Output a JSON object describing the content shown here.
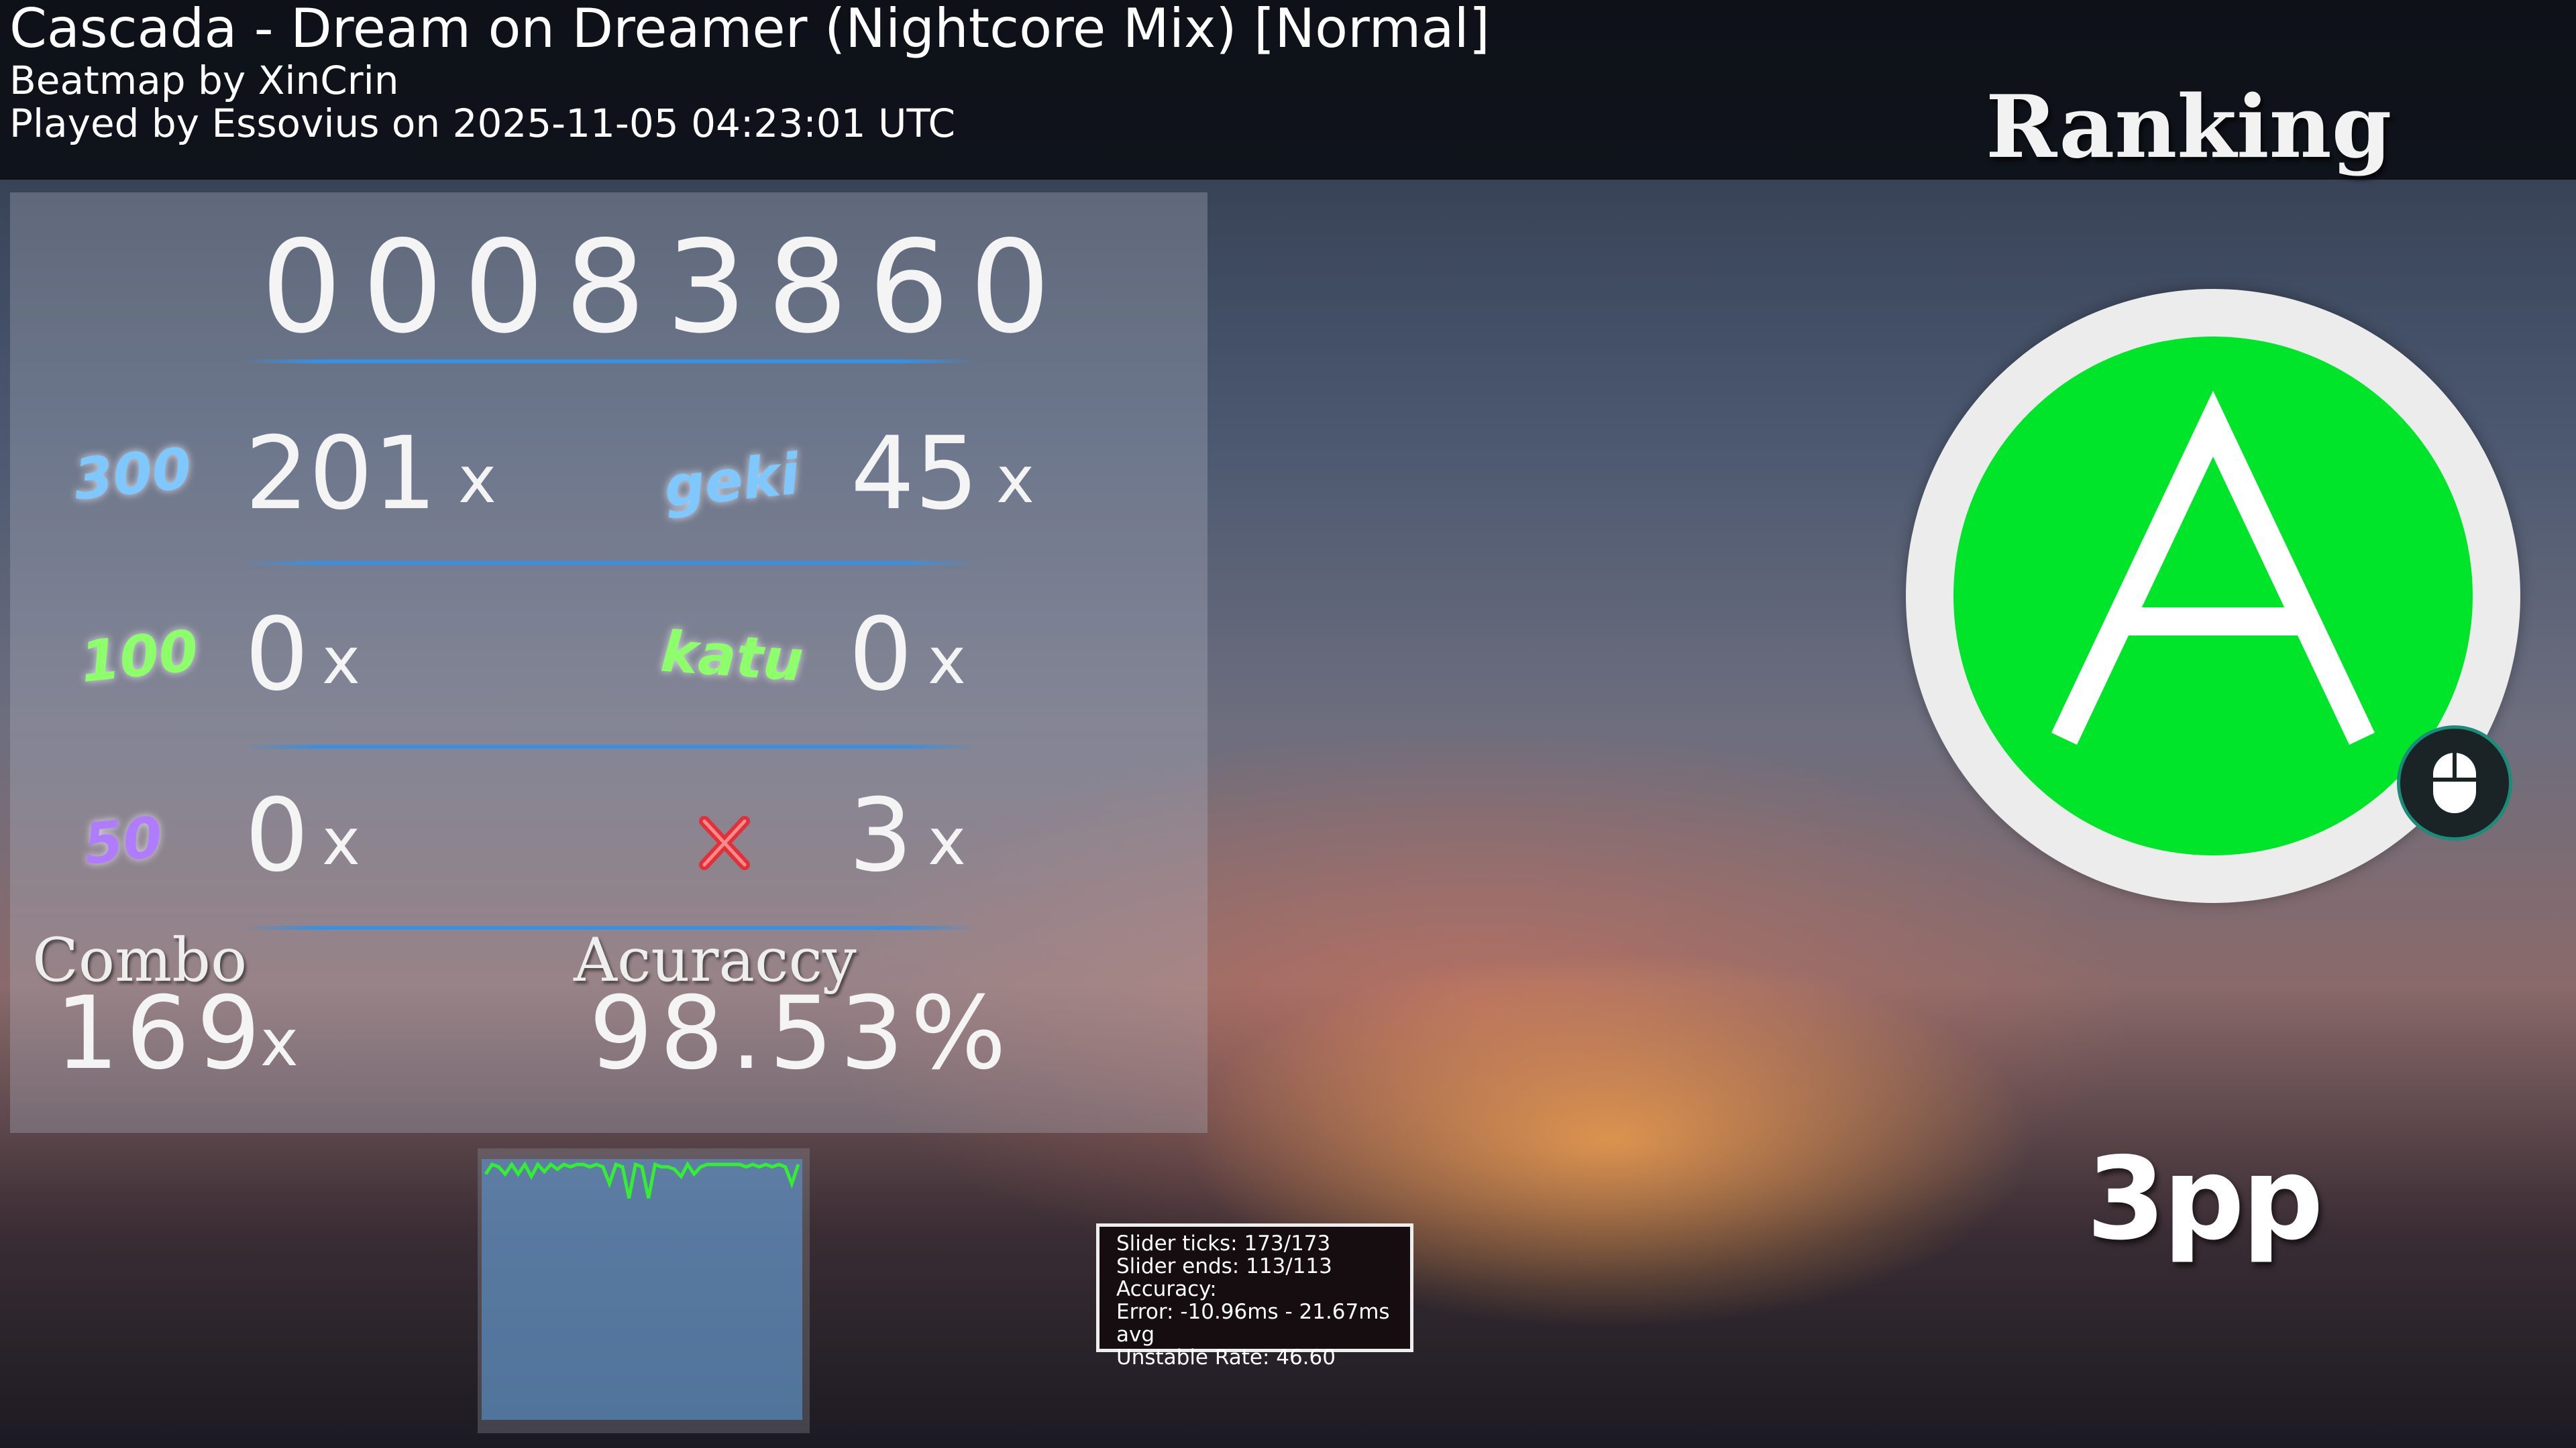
{
  "header": {
    "title": "Cascada - Dream on Dreamer (Nightcore Mix) [Normal]",
    "mapper": "Beatmap by XinCrin",
    "played_by": "Played by Essovius on 2025-11-05 04:23:01 UTC",
    "ranking_label": "Ranking"
  },
  "score": {
    "total": "00083860",
    "hits": [
      {
        "label": "300",
        "count": "201",
        "color": "#7ec8ff"
      },
      {
        "label": "geki",
        "count": "45",
        "color": "#7ec8ff"
      },
      {
        "label": "100",
        "count": "0",
        "color": "#8cff6a"
      },
      {
        "label": "katu",
        "count": "0",
        "color": "#8cff6a"
      },
      {
        "label": "50",
        "count": "0",
        "color": "#b07cff"
      },
      {
        "label": "miss",
        "count": "3",
        "color": "#e0313a",
        "icon": "x-miss-icon"
      }
    ],
    "x_suffix": "x",
    "combo_label": "Combo",
    "combo": "169",
    "accuracy_label": "Acuraccy",
    "accuracy": "98.53%"
  },
  "performance_graph": {
    "line_color": "#33ee33",
    "values": [
      0.96,
      1,
      0.99,
      0.96,
      1,
      0.96,
      1,
      0.95,
      1,
      0.97,
      1,
      0.98,
      1,
      0.99,
      1,
      1,
      0.99,
      1,
      0.99,
      0.92,
      1,
      0.99,
      0.86,
      1,
      0.99,
      0.86,
      1,
      0.99,
      0.99,
      0.98,
      0.95,
      1,
      0.96,
      0.99,
      1,
      1,
      1,
      1,
      1,
      1,
      0.99,
      1,
      0.99,
      1,
      0.99,
      1,
      0.99,
      0.92,
      1
    ]
  },
  "stats_tooltip": {
    "lines": [
      "Slider ticks: 173/173",
      "Slider ends: 113/113",
      "Accuracy:",
      "Error: -10.96ms - 21.67ms avg",
      "Unstable Rate: 46.60"
    ]
  },
  "grade": {
    "letter": "A",
    "color": "#00e52a",
    "input_icon": "mouse-icon"
  },
  "pp": "3pp"
}
